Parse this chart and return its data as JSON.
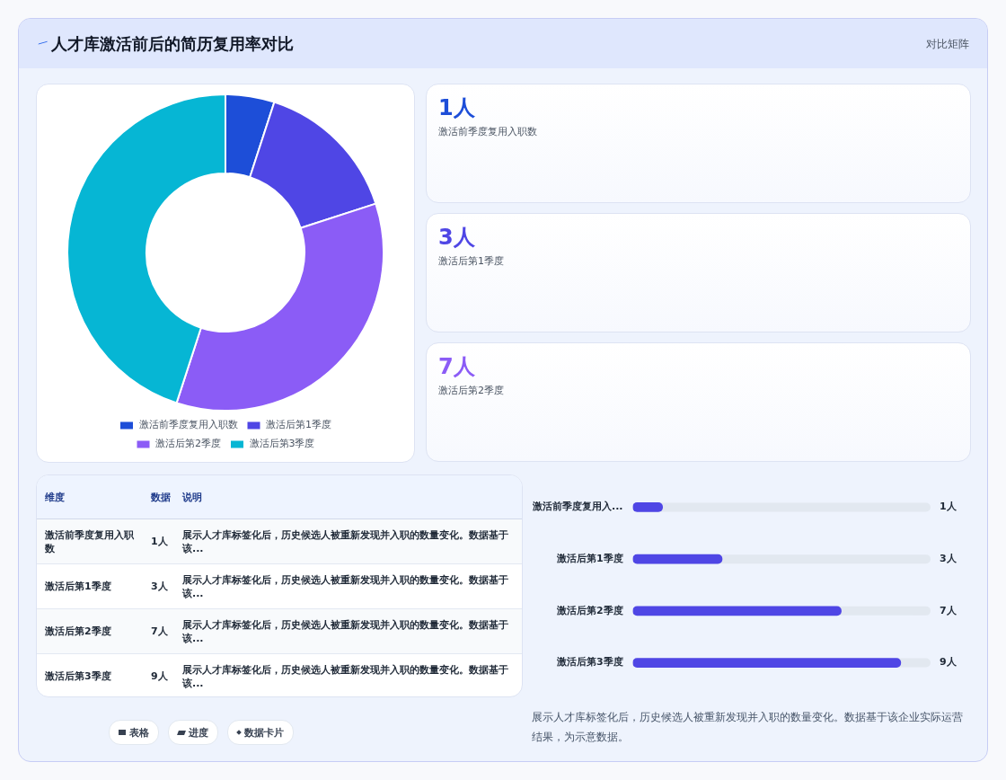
{
  "chart_data": [
    {
      "type": "donut",
      "title": "人才库激活前后的简历复用率对比",
      "categories": [
        "激活前季度复用入职数",
        "激活后第1季度",
        "激活后第2季度",
        "激活后第3季度"
      ],
      "values": [
        5,
        15,
        35,
        45
      ],
      "colors": [
        "#1d4ed8",
        "#4f46e5",
        "#8b5cf6",
        "#06b6d4"
      ],
      "legend": "bottom"
    },
    {
      "type": "other",
      "subtitle": "对比矩阵",
      "annotations": [
        "1人",
        "激活前季度复用入职数",
        "3人",
        "激活后第1季度",
        "7人",
        "激活后第2季度"
      ],
      "colors": [
        "#1d4ed8",
        "#4f46e5",
        "#8b5cf6"
      ]
    },
    {
      "type": "other",
      "annotations": [
        "维度",
        "数据",
        "说明",
        "激活前季度复用入职数",
        "1人",
        "展示人才库标签化后，历史候选人被重新发现并入职的数量变化。数据基于该...",
        "激活后第1季度",
        "3人",
        "展示人才库标签化后，历史候选人被重新发现并入职的数量变化。数据基于该...",
        "激活后第2季度",
        "7人",
        "展示人才库标签化后，历史候选人被重新发现并入职的数量变化。数据基于该...",
        "激活后第3季度",
        "9人",
        "展示人才库标签化后，历史候选人被重新发现并入职的数量变化。数据基于该...",
        "表格",
        "进度",
        "数据卡片"
      ]
    },
    {
      "type": "bar",
      "orientation": "horizontal",
      "categories": [
        "激活前季度复用入...",
        "激活后第1季度",
        "激活后第2季度",
        "激活后第3季度"
      ],
      "values": [
        1,
        3,
        7,
        9
      ],
      "value_labels": [
        "1人",
        "3人",
        "7人",
        "9人"
      ],
      "color": "#4f46e5",
      "annotations": [
        "展示人才库标签化后，历史候选人被重新发现并入职的数量变化。数据基于该企业实际运营结果，为示意数据。"
      ]
    }
  ]
}
